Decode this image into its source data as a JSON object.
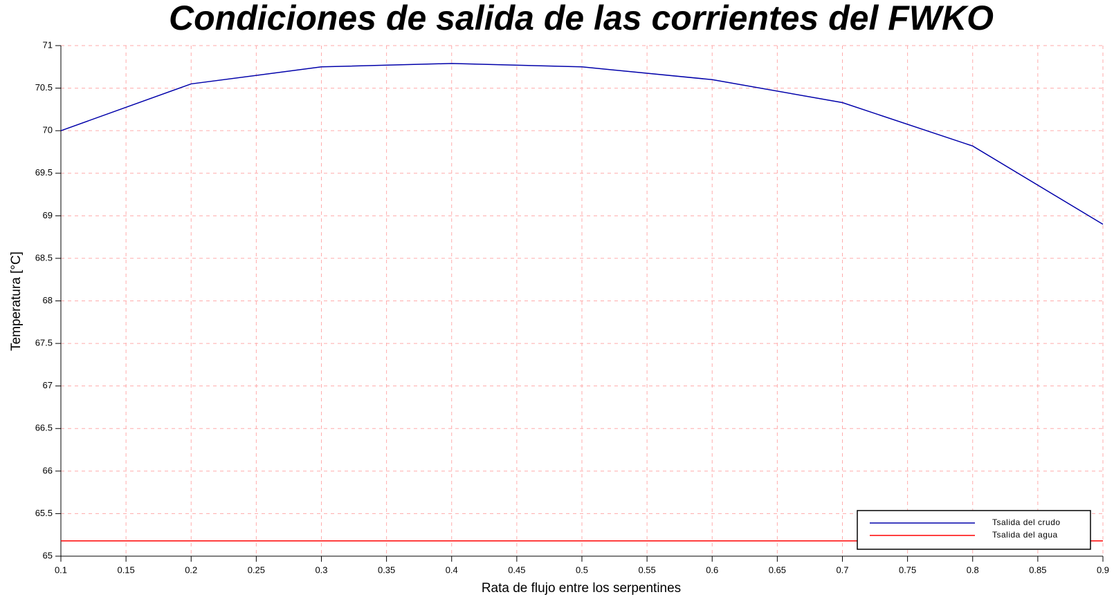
{
  "chart_data": {
    "type": "line",
    "title": "Condiciones de salida de las corrientes del FWKO",
    "xlabel": "Rata de flujo entre los serpentines",
    "ylabel": "Temperatura [°C]",
    "x": [
      0.1,
      0.2,
      0.3,
      0.4,
      0.5,
      0.6,
      0.7,
      0.8,
      0.9
    ],
    "series": [
      {
        "name": "Tsalida del crudo",
        "color": "#0000aa",
        "values": [
          70.0,
          70.55,
          70.75,
          70.79,
          70.75,
          70.6,
          70.33,
          69.82,
          68.9
        ]
      },
      {
        "name": "Tsalida del agua",
        "color": "#ff0000",
        "values": [
          65.18,
          65.18,
          65.18,
          65.18,
          65.18,
          65.18,
          65.18,
          65.18,
          65.18
        ]
      }
    ],
    "xlim": [
      0.1,
      0.9
    ],
    "xticks": [
      0.1,
      0.15,
      0.2,
      0.25,
      0.3,
      0.35,
      0.4,
      0.45,
      0.5,
      0.55,
      0.6,
      0.65,
      0.7,
      0.75,
      0.8,
      0.85,
      0.9
    ],
    "ylim": [
      65,
      71
    ],
    "yticks": [
      65,
      65.5,
      66,
      66.5,
      67,
      67.5,
      68,
      68.5,
      69,
      69.5,
      70,
      70.5,
      71
    ],
    "grid": true,
    "legend": "lower right"
  }
}
